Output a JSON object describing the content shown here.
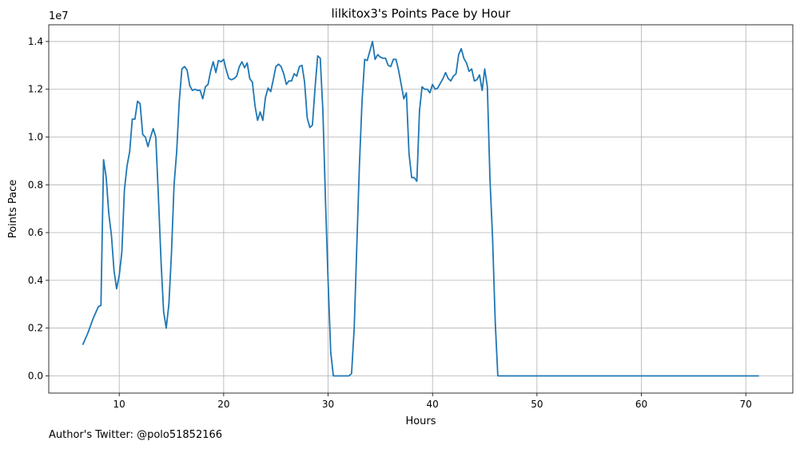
{
  "chart_data": {
    "type": "line",
    "title": "lilkitox3's Points Pace by Hour",
    "xlabel": "Hours",
    "ylabel": "Points Pace",
    "y_offset_label": "1e7",
    "xlim": [
      3.25,
      74.5
    ],
    "ylim": [
      -720000,
      14700000
    ],
    "x_ticks": [
      10,
      20,
      30,
      40,
      50,
      60,
      70
    ],
    "x_tick_labels": [
      "10",
      "20",
      "30",
      "40",
      "50",
      "60",
      "70"
    ],
    "y_ticks": [
      0,
      2000000,
      4000000,
      6000000,
      8000000,
      10000000,
      12000000,
      14000000
    ],
    "y_tick_labels": [
      "0.0",
      "0.2",
      "0.4",
      "0.6",
      "0.8",
      "1.0",
      "1.2",
      "1.4"
    ],
    "grid": true,
    "line_color": "#1f77b4",
    "series": [
      {
        "x": [
          6.5,
          7.0,
          7.5,
          8.0,
          8.25,
          8.5,
          8.75,
          9.0,
          9.25,
          9.5,
          9.75,
          10.0,
          10.25,
          10.5,
          10.75,
          11.0,
          11.25,
          11.5,
          11.75,
          12.0,
          12.25,
          12.5,
          12.75,
          13.0,
          13.25,
          13.5,
          13.75,
          14.0,
          14.25,
          14.5,
          14.75,
          15.0,
          15.25,
          15.5,
          15.75,
          16.0,
          16.25,
          16.5,
          16.75,
          17.0,
          17.25,
          17.5,
          17.75,
          18.0,
          18.25,
          18.5,
          18.75,
          19.0,
          19.25,
          19.5,
          19.75,
          20.0,
          20.25,
          20.5,
          20.75,
          21.0,
          21.25,
          21.5,
          21.75,
          22.0,
          22.25,
          22.5,
          22.75,
          23.0,
          23.25,
          23.5,
          23.75,
          24.0,
          24.25,
          24.5,
          24.75,
          25.0,
          25.25,
          25.5,
          25.75,
          26.0,
          26.25,
          26.5,
          26.75,
          27.0,
          27.25,
          27.5,
          27.75,
          28.0,
          28.25,
          28.5,
          28.75,
          29.0,
          29.25,
          29.5,
          29.75,
          30.0,
          30.25,
          30.5,
          30.75,
          31.0,
          31.5,
          32.0,
          32.25,
          32.5,
          32.75,
          33.0,
          33.25,
          33.5,
          33.75,
          34.0,
          34.25,
          34.5,
          34.75,
          35.0,
          35.25,
          35.5,
          35.75,
          36.0,
          36.25,
          36.5,
          36.75,
          37.0,
          37.25,
          37.5,
          37.75,
          38.0,
          38.25,
          38.5,
          38.75,
          39.0,
          39.25,
          39.5,
          39.75,
          40.0,
          40.25,
          40.5,
          40.75,
          41.0,
          41.25,
          41.5,
          41.75,
          42.0,
          42.25,
          42.5,
          42.75,
          43.0,
          43.25,
          43.5,
          43.75,
          44.0,
          44.25,
          44.5,
          44.75,
          45.0,
          45.25,
          45.5,
          45.75,
          46.0,
          46.25,
          47.0,
          50.0,
          55.0,
          60.0,
          65.0,
          70.0,
          71.25
        ],
        "y": [
          1300000,
          1800000,
          2400000,
          2900000,
          2950000,
          9050000,
          8300000,
          6800000,
          5900000,
          4400000,
          3650000,
          4200000,
          5200000,
          7800000,
          8800000,
          9400000,
          10750000,
          10750000,
          11500000,
          11400000,
          10100000,
          10000000,
          9600000,
          10000000,
          10350000,
          10000000,
          7500000,
          4800000,
          2700000,
          2000000,
          3000000,
          5100000,
          8000000,
          9400000,
          11500000,
          12850000,
          12950000,
          12800000,
          12150000,
          11950000,
          12000000,
          11950000,
          11950000,
          11600000,
          12100000,
          12200000,
          12750000,
          13150000,
          12700000,
          13200000,
          13150000,
          13250000,
          12800000,
          12450000,
          12400000,
          12450000,
          12550000,
          12950000,
          13150000,
          12900000,
          13100000,
          12450000,
          12300000,
          11300000,
          10700000,
          11050000,
          10700000,
          11650000,
          12050000,
          11900000,
          12400000,
          12950000,
          13050000,
          12950000,
          12650000,
          12200000,
          12350000,
          12350000,
          12650000,
          12550000,
          12950000,
          13000000,
          12300000,
          10800000,
          10400000,
          10500000,
          12050000,
          13400000,
          13300000,
          11100000,
          7300000,
          4000000,
          1000000,
          0,
          0,
          0,
          0,
          0,
          100000,
          2000000,
          5500000,
          8800000,
          11500000,
          13250000,
          13200000,
          13600000,
          14000000,
          13250000,
          13450000,
          13350000,
          13300000,
          13300000,
          13000000,
          12950000,
          13250000,
          13250000,
          12800000,
          12200000,
          11600000,
          11850000,
          9300000,
          8300000,
          8300000,
          8150000,
          11100000,
          12100000,
          12000000,
          12000000,
          11850000,
          12200000,
          12000000,
          12050000,
          12250000,
          12450000,
          12700000,
          12450000,
          12350000,
          12550000,
          12650000,
          13450000,
          13700000,
          13300000,
          13100000,
          12750000,
          12850000,
          12350000,
          12400000,
          12600000,
          11950000,
          12850000,
          12100000,
          8200000,
          5800000,
          2300000,
          0,
          0,
          0,
          0,
          0,
          0,
          0,
          0
        ]
      }
    ]
  },
  "footer": {
    "author_note": "Author's Twitter: @polo51852166"
  }
}
